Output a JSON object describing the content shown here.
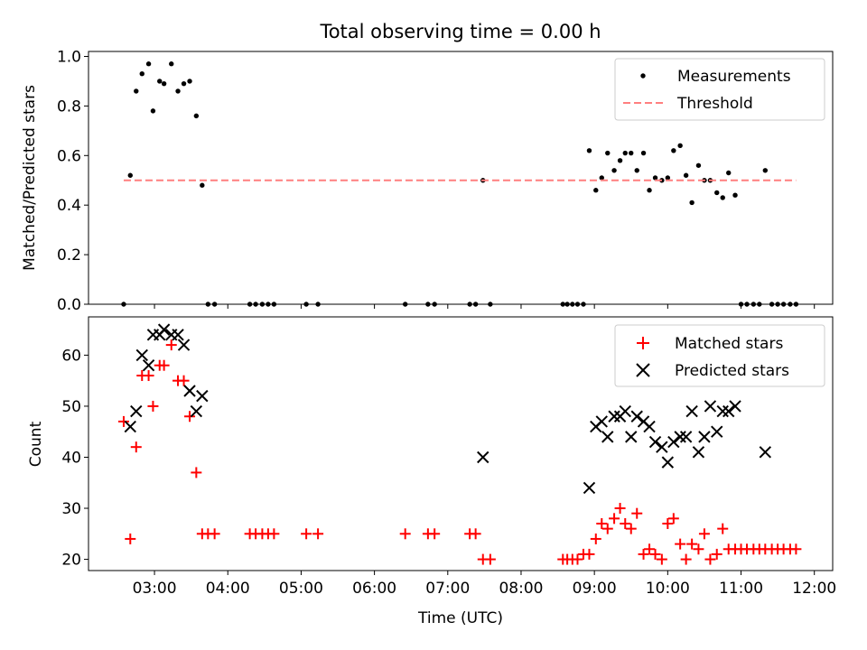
{
  "title": "Total observing time = 0.00 h",
  "chart_data": [
    {
      "type": "scatter",
      "ylabel": "Matched/Predicted stars",
      "xlabel": "",
      "xlim": [
        2.1,
        12.25
      ],
      "ylim": [
        0,
        1.02
      ],
      "yticks": [
        0.0,
        0.2,
        0.4,
        0.6,
        0.8,
        1.0
      ],
      "ytick_labels": [
        "0.0",
        "0.2",
        "0.4",
        "0.6",
        "0.8",
        "1.0"
      ],
      "legend": {
        "placement": "top-right",
        "entries": [
          "Measurements",
          "Threshold"
        ]
      },
      "series": [
        {
          "name": "Measurements",
          "marker": "dot",
          "color": "#000000",
          "x": [
            2.58,
            2.67,
            2.75,
            2.83,
            2.92,
            2.98,
            3.07,
            3.13,
            3.23,
            3.32,
            3.4,
            3.48,
            3.57,
            3.65,
            3.73,
            3.82,
            4.3,
            4.38,
            4.47,
            4.55,
            4.63,
            5.07,
            5.23,
            6.42,
            6.73,
            6.82,
            7.3,
            7.38,
            7.48,
            7.58,
            8.57,
            8.63,
            8.7,
            8.77,
            8.85,
            8.93,
            9.02,
            9.1,
            9.18,
            9.27,
            9.35,
            9.42,
            9.5,
            9.58,
            9.67,
            9.75,
            9.83,
            9.92,
            10.0,
            10.08,
            10.17,
            10.25,
            10.33,
            10.42,
            10.5,
            10.58,
            10.67,
            10.75,
            10.83,
            10.92,
            11.0,
            11.08,
            11.17,
            11.25,
            11.33,
            11.42,
            11.5,
            11.58,
            11.67,
            11.75
          ],
          "y": [
            0.0,
            0.52,
            0.86,
            0.93,
            0.97,
            0.78,
            0.9,
            0.89,
            0.97,
            0.86,
            0.89,
            0.9,
            0.76,
            0.48,
            0.0,
            0.0,
            0.0,
            0.0,
            0.0,
            0.0,
            0.0,
            0.0,
            0.0,
            0.0,
            0.0,
            0.0,
            0.0,
            0.0,
            0.5,
            0.0,
            0.0,
            0.0,
            0.0,
            0.0,
            0.0,
            0.62,
            0.46,
            0.51,
            0.61,
            0.54,
            0.58,
            0.61,
            0.61,
            0.54,
            0.61,
            0.46,
            0.51,
            0.5,
            0.51,
            0.62,
            0.64,
            0.52,
            0.41,
            0.56,
            0.5,
            0.5,
            0.45,
            0.43,
            0.53,
            0.44,
            0.0,
            0.0,
            0.0,
            0.0,
            0.54,
            0.0,
            0.0,
            0.0,
            0.0,
            0.0
          ]
        },
        {
          "name": "Threshold",
          "style": "dashed",
          "color": "#ff7f7f",
          "x": [
            2.58,
            11.75
          ],
          "y": [
            0.5,
            0.5
          ]
        }
      ]
    },
    {
      "type": "scatter",
      "ylabel": "Count",
      "xlabel": "Time (UTC)",
      "xlim": [
        2.1,
        12.25
      ],
      "ylim": [
        17.8,
        67.5
      ],
      "yticks": [
        20,
        30,
        40,
        50,
        60
      ],
      "ytick_labels": [
        "20",
        "30",
        "40",
        "50",
        "60"
      ],
      "xticks": [
        3,
        4,
        5,
        6,
        7,
        8,
        9,
        10,
        11,
        12
      ],
      "xtick_labels": [
        "03:00",
        "04:00",
        "05:00",
        "06:00",
        "07:00",
        "08:00",
        "09:00",
        "10:00",
        "11:00",
        "12:00"
      ],
      "legend": {
        "placement": "top-right",
        "entries": [
          "Matched stars",
          "Predicted stars"
        ]
      },
      "series": [
        {
          "name": "Matched stars",
          "marker": "plus",
          "color": "#ff0000",
          "x": [
            2.58,
            2.67,
            2.75,
            2.83,
            2.92,
            2.98,
            3.07,
            3.13,
            3.23,
            3.32,
            3.4,
            3.48,
            3.57,
            3.65,
            3.73,
            3.82,
            4.3,
            4.38,
            4.47,
            4.55,
            4.63,
            5.07,
            5.23,
            6.42,
            6.73,
            6.82,
            7.3,
            7.38,
            7.48,
            7.58,
            8.57,
            8.63,
            8.7,
            8.77,
            8.85,
            8.93,
            9.02,
            9.1,
            9.18,
            9.27,
            9.35,
            9.42,
            9.5,
            9.58,
            9.67,
            9.75,
            9.83,
            9.92,
            10.0,
            10.08,
            10.17,
            10.25,
            10.33,
            10.42,
            10.5,
            10.58,
            10.67,
            10.75,
            10.83,
            10.92,
            11.0,
            11.08,
            11.17,
            11.25,
            11.33,
            11.42,
            11.5,
            11.58,
            11.67,
            11.75
          ],
          "y": [
            47,
            24,
            42,
            56,
            56,
            50,
            58,
            58,
            62,
            55,
            55,
            48,
            37,
            25,
            25,
            25,
            25,
            25,
            25,
            25,
            25,
            25,
            25,
            25,
            25,
            25,
            25,
            25,
            20,
            20,
            20,
            20,
            20,
            20,
            21,
            21,
            24,
            27,
            26,
            28,
            30,
            27,
            26,
            29,
            21,
            22,
            21,
            20,
            27,
            28,
            23,
            20,
            23,
            22,
            25,
            20,
            21,
            26,
            22,
            22,
            22,
            22,
            22,
            22,
            22,
            22,
            22,
            22,
            22,
            22
          ]
        },
        {
          "name": "Predicted stars",
          "marker": "x",
          "color": "#000000",
          "x": [
            2.67,
            2.75,
            2.83,
            2.92,
            2.98,
            3.07,
            3.13,
            3.23,
            3.32,
            3.4,
            3.48,
            3.57,
            3.65,
            7.48,
            8.93,
            9.02,
            9.1,
            9.18,
            9.27,
            9.35,
            9.42,
            9.5,
            9.58,
            9.67,
            9.75,
            9.83,
            9.92,
            10.0,
            10.08,
            10.17,
            10.25,
            10.33,
            10.42,
            10.5,
            10.58,
            10.67,
            10.75,
            10.83,
            10.92,
            11.33
          ],
          "y": [
            46,
            49,
            60,
            58,
            64,
            64,
            65,
            64,
            64,
            62,
            53,
            49,
            52,
            40,
            34,
            46,
            47,
            44,
            48,
            48,
            49,
            44,
            48,
            47,
            46,
            43,
            42,
            39,
            43,
            44,
            44,
            49,
            41,
            44,
            50,
            45,
            49,
            49,
            50,
            41
          ]
        }
      ]
    }
  ]
}
